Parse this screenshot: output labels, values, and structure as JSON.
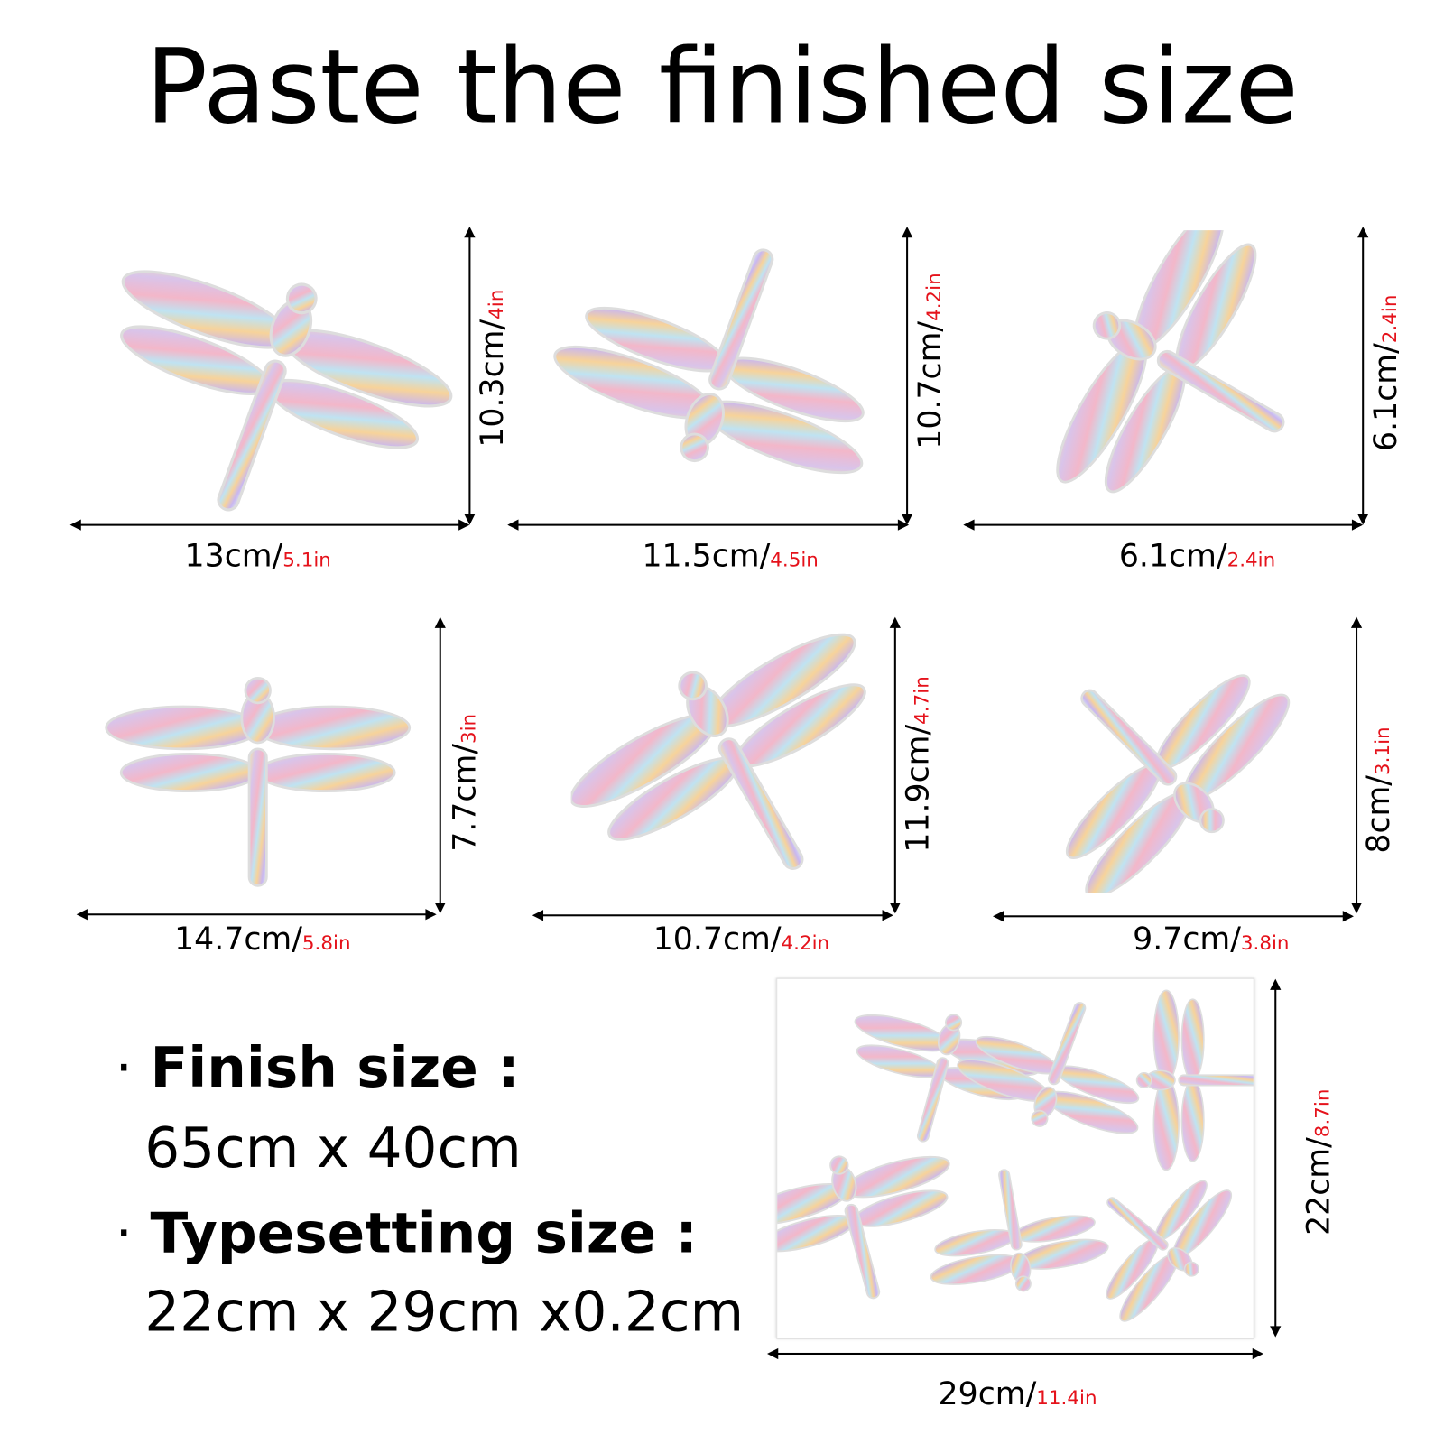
{
  "title": "Paste the finished size",
  "stickers": [
    {
      "width_cm": "13cm/",
      "width_in": "5.1in",
      "height_cm": "10.3cm/",
      "height_in": "4in"
    },
    {
      "width_cm": "11.5cm/",
      "width_in": "4.5in",
      "height_cm": "10.7cm/",
      "height_in": "4.2in"
    },
    {
      "width_cm": "6.1cm/",
      "width_in": "2.4in",
      "height_cm": "6.1cm/",
      "height_in": "2.4in"
    },
    {
      "width_cm": "14.7cm/",
      "width_in": "5.8in",
      "height_cm": "7.7cm/",
      "height_in": "3in"
    },
    {
      "width_cm": "10.7cm/",
      "width_in": "4.2in",
      "height_cm": "11.9cm/",
      "height_in": "4.7in"
    },
    {
      "width_cm": "9.7cm/",
      "width_in": "3.8in",
      "height_cm": "8cm/",
      "height_in": "3.1in"
    }
  ],
  "sheet": {
    "width_cm": "29cm/",
    "width_in": "11.4in",
    "height_cm": "22cm/",
    "height_in": "8.7in"
  },
  "specs": {
    "bullet": "·",
    "finish_label": "Finish size :",
    "finish_value": "65cm x 40cm",
    "typesetting_label": "Typesetting size :",
    "typesetting_value": "22cm x 29cm x0.2cm"
  },
  "colors": {
    "inch_text": "#e5121b",
    "arrow": "#000000"
  }
}
